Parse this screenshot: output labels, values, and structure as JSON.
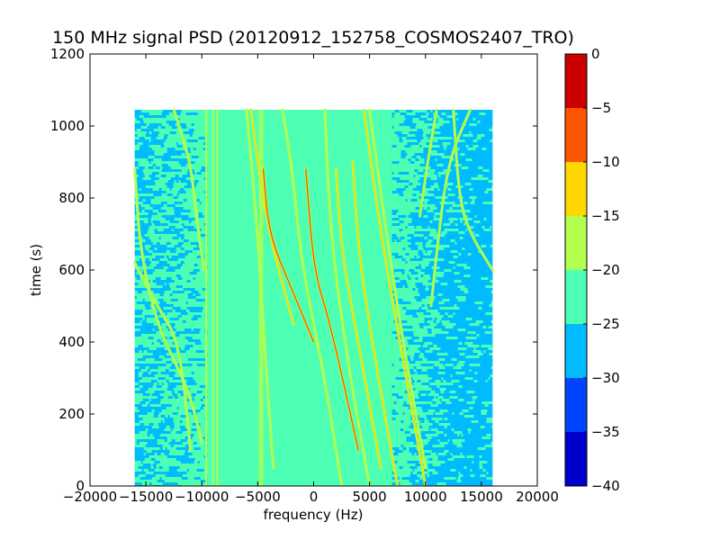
{
  "chart_data": {
    "type": "heatmap",
    "title": "150 MHz signal PSD (20120912_152758_COSMOS2407_TRO)",
    "xlabel": "frequency (Hz)",
    "ylabel": "time (s)",
    "xlim": [
      -20000,
      20000
    ],
    "ylim": [
      0,
      1200
    ],
    "xticks": [
      -20000,
      -15000,
      -10000,
      -5000,
      0,
      5000,
      10000,
      15000,
      20000
    ],
    "xtick_labels": [
      "−20000",
      "−15000",
      "−10000",
      "−5000",
      "0",
      "5000",
      "10000",
      "15000",
      "20000"
    ],
    "yticks": [
      0,
      200,
      400,
      600,
      800,
      1000,
      1200
    ],
    "ytick_labels": [
      "0",
      "200",
      "400",
      "600",
      "800",
      "1000",
      "1200"
    ],
    "data_extent": {
      "x": [
        -16000,
        16000
      ],
      "y": [
        0,
        1045
      ]
    },
    "background_level": -22.5,
    "regions": [
      {
        "x": [
          -16000,
          -9500
        ],
        "y": [
          0,
          1045
        ],
        "description": "noisy mix",
        "levels": [
          -27.5,
          -22.5
        ]
      },
      {
        "x": [
          7000,
          16000
        ],
        "y": [
          0,
          1045
        ],
        "description": "mostly low",
        "levels": [
          -27.5,
          -22.5
        ]
      }
    ],
    "vertical_lines": [
      {
        "x": -9600,
        "level": -17.5
      },
      {
        "x": -9000,
        "level": -17.5
      },
      {
        "x": -8600,
        "level": -17.5
      },
      {
        "x": -4800,
        "level": -17.5
      },
      {
        "x": -4600,
        "level": -17.5
      }
    ],
    "signal_traces": [
      {
        "points": [
          [
            -3600,
            50
          ],
          [
            -4200,
            300
          ],
          [
            -5000,
            700
          ],
          [
            -6000,
            1045
          ]
        ],
        "level": -17.5
      },
      {
        "points": [
          [
            -1800,
            450
          ],
          [
            -4000,
            700
          ],
          [
            -5000,
            900
          ],
          [
            -5600,
            1045
          ]
        ],
        "level": -12.5
      },
      {
        "points": [
          [
            0,
            400
          ],
          [
            -2000,
            550
          ],
          [
            -4000,
            700
          ],
          [
            -4500,
            880
          ]
        ],
        "level": -7.5
      },
      {
        "points": [
          [
            2500,
            0
          ],
          [
            1000,
            300
          ],
          [
            -1000,
            600
          ],
          [
            -2000,
            900
          ],
          [
            -2800,
            1045
          ]
        ],
        "level": -15
      },
      {
        "points": [
          [
            4000,
            100
          ],
          [
            1500,
            450
          ],
          [
            0,
            600
          ],
          [
            -700,
            880
          ]
        ],
        "level": -7.5
      },
      {
        "points": [
          [
            5000,
            0
          ],
          [
            3000,
            350
          ],
          [
            1500,
            700
          ],
          [
            1000,
            1045
          ]
        ],
        "level": -15
      },
      {
        "points": [
          [
            6000,
            50
          ],
          [
            4000,
            400
          ],
          [
            2500,
            650
          ],
          [
            2000,
            880
          ]
        ],
        "level": -12.5
      },
      {
        "points": [
          [
            7500,
            0
          ],
          [
            5500,
            350
          ],
          [
            4000,
            650
          ],
          [
            3500,
            900
          ]
        ],
        "level": -12.5
      },
      {
        "points": [
          [
            10000,
            0
          ],
          [
            8000,
            350
          ],
          [
            6000,
            700
          ],
          [
            4500,
            1045
          ]
        ],
        "level": -12.5
      },
      {
        "points": [
          [
            10000,
            50
          ],
          [
            8000,
            400
          ],
          [
            6500,
            700
          ],
          [
            5000,
            1045
          ]
        ],
        "level": -17.5
      },
      {
        "points": [
          [
            -16000,
            880
          ],
          [
            -15500,
            650
          ],
          [
            -14000,
            450
          ],
          [
            -12500,
            350
          ],
          [
            -11000,
            250
          ],
          [
            -10000,
            120
          ]
        ],
        "level": -17.5
      },
      {
        "points": [
          [
            -16000,
            620
          ],
          [
            -14000,
            500
          ],
          [
            -12000,
            400
          ],
          [
            -11000,
            100
          ]
        ],
        "level": -17.5
      },
      {
        "points": [
          [
            -12500,
            1045
          ],
          [
            -11000,
            900
          ],
          [
            -10500,
            750
          ],
          [
            -9800,
            600
          ]
        ],
        "level": -17.5
      },
      {
        "points": [
          [
            16000,
            600
          ],
          [
            14000,
            700
          ],
          [
            13000,
            800
          ],
          [
            12500,
            1045
          ]
        ],
        "level": -17.5
      },
      {
        "points": [
          [
            14000,
            1045
          ],
          [
            12000,
            900
          ],
          [
            11000,
            650
          ],
          [
            10500,
            500
          ]
        ],
        "level": -17.5
      },
      {
        "points": [
          [
            11000,
            1045
          ],
          [
            10200,
            900
          ],
          [
            9500,
            750
          ]
        ],
        "level": -17.5
      }
    ],
    "colorbar": {
      "range": [
        -40,
        0
      ],
      "ticks": [
        0,
        -5,
        -10,
        -15,
        -20,
        -25,
        -30,
        -35,
        -40
      ],
      "tick_labels": [
        "0",
        "−5",
        "−10",
        "−15",
        "−20",
        "−25",
        "−30",
        "−35",
        "−40"
      ],
      "bands": [
        {
          "from": -40,
          "to": -35,
          "color": "#0000cc"
        },
        {
          "from": -35,
          "to": -30,
          "color": "#0044ff"
        },
        {
          "from": -30,
          "to": -25,
          "color": "#00bbff"
        },
        {
          "from": -25,
          "to": -20,
          "color": "#4dffb2"
        },
        {
          "from": -20,
          "to": -15,
          "color": "#b2ff4d"
        },
        {
          "from": -15,
          "to": -10,
          "color": "#ffd700"
        },
        {
          "from": -10,
          "to": -5,
          "color": "#ff5500"
        },
        {
          "from": -5,
          "to": 0,
          "color": "#cc0000"
        }
      ]
    }
  }
}
